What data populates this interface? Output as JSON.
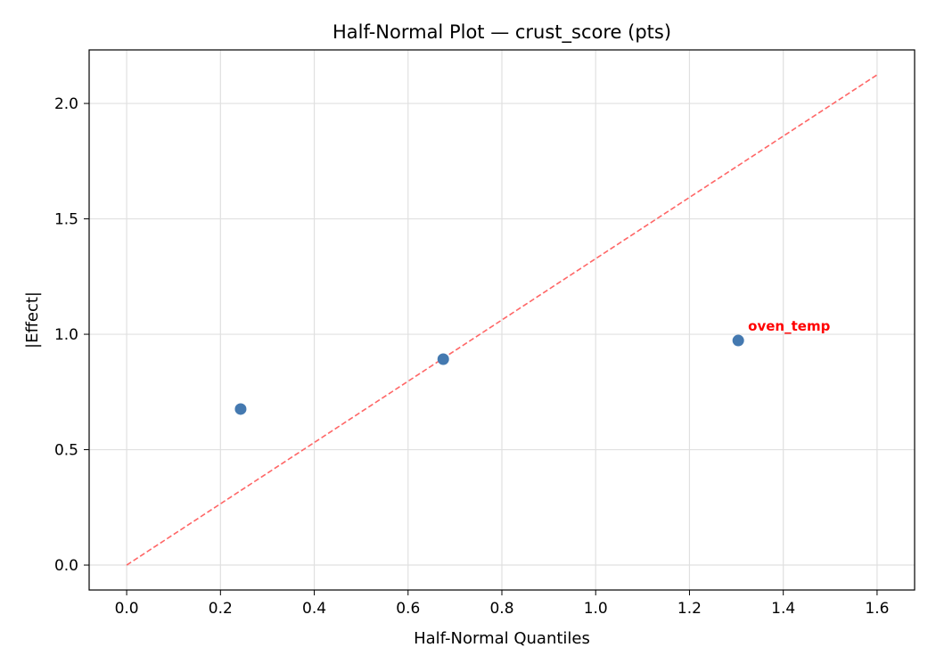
{
  "chart_data": {
    "type": "scatter",
    "title": "Half-Normal Plot — crust_score (pts)",
    "xlabel": "Half-Normal Quantiles",
    "ylabel": "|Effect|",
    "xlim": [
      -0.08,
      1.68
    ],
    "ylim": [
      -0.108,
      2.232
    ],
    "xticks": [
      0.0,
      0.2,
      0.4,
      0.6,
      0.8,
      1.0,
      1.2,
      1.4,
      1.6
    ],
    "xtick_labels": [
      "0.0",
      "0.2",
      "0.4",
      "0.6",
      "0.8",
      "1.0",
      "1.2",
      "1.4",
      "1.6"
    ],
    "yticks": [
      0.0,
      0.5,
      1.0,
      1.5,
      2.0
    ],
    "ytick_labels": [
      "0.0",
      "0.5",
      "1.0",
      "1.5",
      "2.0"
    ],
    "grid": true,
    "points": [
      {
        "x": 0.243,
        "y": 0.676,
        "label": ""
      },
      {
        "x": 0.675,
        "y": 0.892,
        "label": ""
      },
      {
        "x": 1.304,
        "y": 0.973,
        "label": "oven_temp"
      }
    ],
    "reference_line": {
      "x": [
        0.0,
        1.6
      ],
      "y": [
        0.0,
        2.124
      ],
      "style": "dashed"
    },
    "colors": {
      "points": "#4479b0",
      "reference_line": "#ff6666",
      "annotation": "#ff0000",
      "grid": "#e0e0e0"
    }
  }
}
